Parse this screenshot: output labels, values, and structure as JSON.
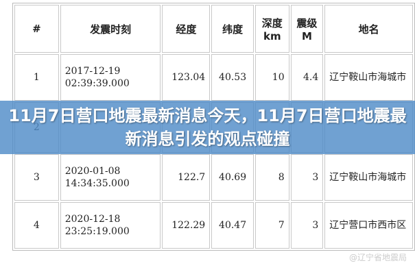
{
  "table": {
    "headers": [
      "#",
      "发震时刻",
      "经度",
      "纬度",
      "深度km",
      "震级M",
      "地名"
    ],
    "rows": [
      [
        "1",
        "2017-12-19 02:39:39.000",
        "123.04",
        "40.53",
        "10",
        "4.4",
        "辽宁鞍山市海城市"
      ],
      [
        "2",
        "",
        "",
        "",
        "",
        "",
        ""
      ],
      [
        "3",
        "2020-01-08 14:34:35.000",
        "122.7",
        "40.69",
        "8",
        "3",
        "辽宁鞍山市海城市"
      ],
      [
        "4",
        "2020-12-18 23:25:19.000",
        "122.29",
        "40.47",
        "7",
        "3",
        "辽宁营口市西市区"
      ]
    ]
  },
  "overlay": {
    "title": "11月7日营口地震最新消息今天，11月7日营口地震最新消息引发的观点碰撞",
    "color": "#5b8fc6"
  },
  "watermark": "@辽宁省地震局"
}
